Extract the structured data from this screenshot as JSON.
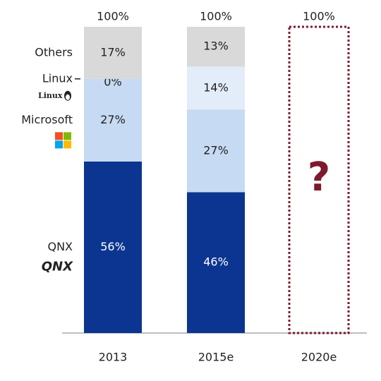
{
  "chart_data": {
    "type": "stacked_bar",
    "categories": [
      "2013",
      "2015e",
      "2020e"
    ],
    "series": [
      {
        "name": "QNX",
        "color": "#0b3590",
        "values": [
          56,
          46,
          null
        ],
        "value_labels": [
          "56%",
          "46%",
          null
        ]
      },
      {
        "name": "Microsoft",
        "color": "#c6daf3",
        "values": [
          27,
          27,
          null
        ],
        "value_labels": [
          "27%",
          "27%",
          null
        ]
      },
      {
        "name": "Linux",
        "color": "#e3ecf9",
        "values": [
          0,
          14,
          null
        ],
        "value_labels": [
          "0%",
          "14%",
          null
        ]
      },
      {
        "name": "Others",
        "color": "#d9d9d9",
        "values": [
          17,
          13,
          null
        ],
        "value_labels": [
          "17%",
          "13%",
          null
        ]
      }
    ],
    "totals": {
      "values": [
        100,
        100,
        100
      ],
      "value_labels": [
        "100%",
        "100%",
        "100%"
      ]
    },
    "annotation": "?",
    "annotation_color": "#7d1a2c",
    "ylim": [
      0,
      100
    ]
  }
}
